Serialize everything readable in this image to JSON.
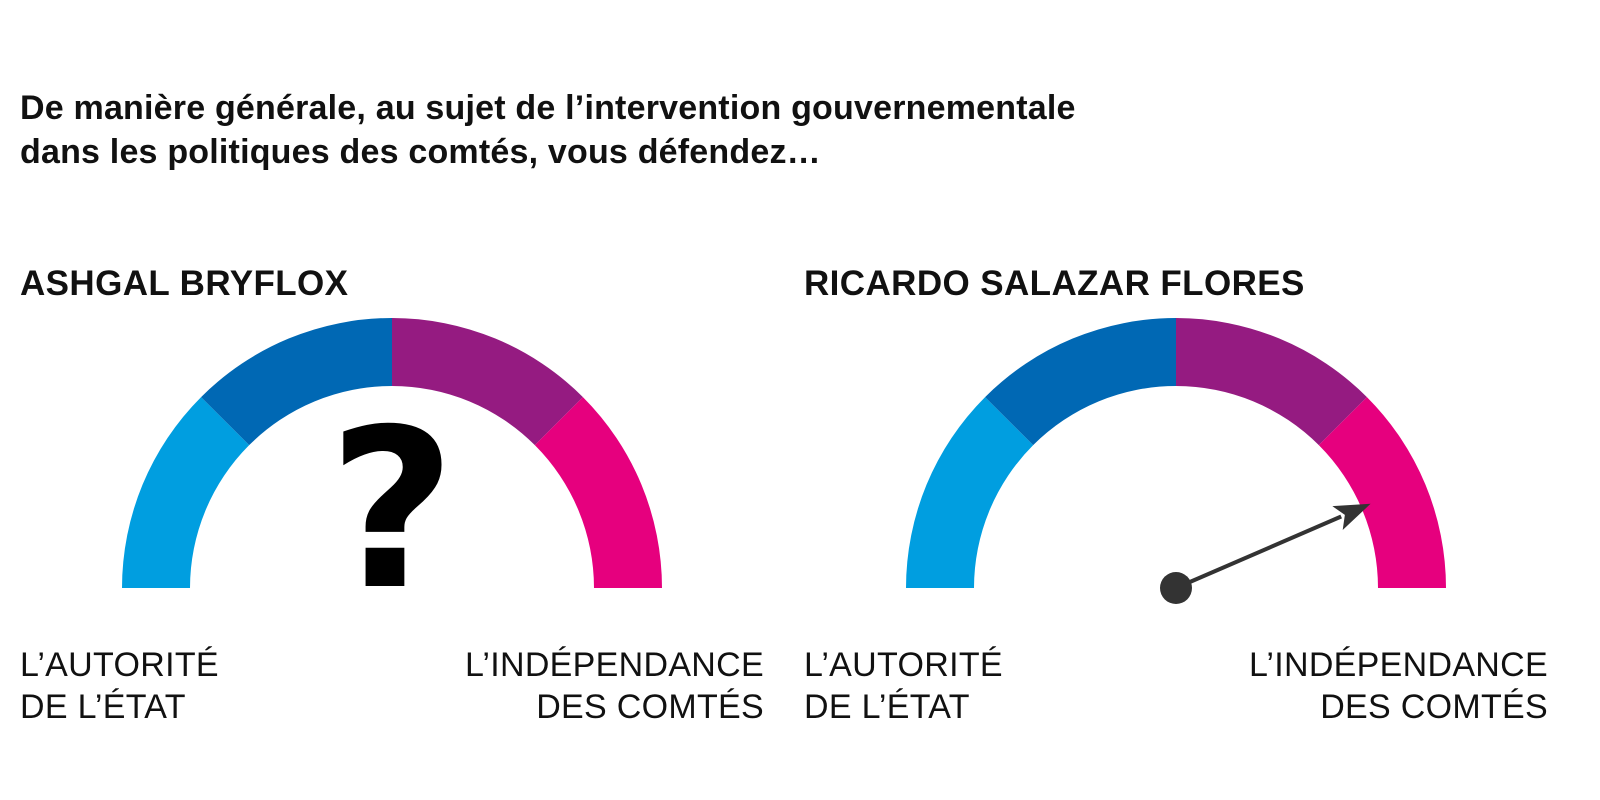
{
  "question": {
    "line1": "De manière générale, au sujet de l’intervention gouvernementale",
    "line2": "dans les politiques des comtés, vous défendez…"
  },
  "candidates": [
    {
      "name": "ASHGAL BRYFLOX",
      "position": null,
      "unknown_symbol": "?",
      "scale_left": [
        "L’AUTORITÉ",
        "DE L’ÉTAT"
      ],
      "scale_right": [
        "L’INDÉPENDANCE",
        "DES COMTÉS"
      ]
    },
    {
      "name": "RICARDO SALAZAR FLORES",
      "position": 0.87,
      "unknown_symbol": "",
      "scale_left": [
        "L’AUTORITÉ",
        "DE L’ÉTAT"
      ],
      "scale_right": [
        "L’INDÉPENDANCE",
        "DES COMTÉS"
      ]
    }
  ],
  "colors": {
    "segment1": "#009ee0",
    "segment2": "#0068b4",
    "segment3": "#951b81",
    "segment4": "#e6007e",
    "needle": "#333333"
  }
}
